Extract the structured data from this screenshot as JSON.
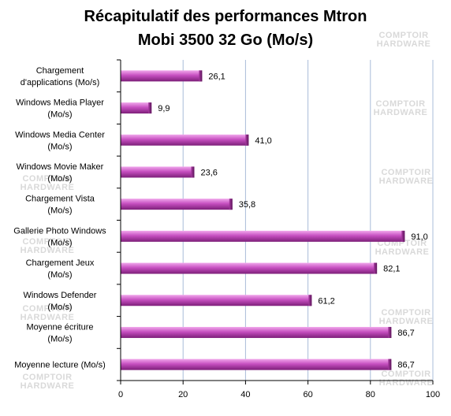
{
  "chart_data": {
    "type": "bar",
    "orientation": "horizontal",
    "title_lines": [
      "Récapitulatif des performances Mtron",
      "Mobi 3500 32 Go (Mo/s)"
    ],
    "categories": [
      [
        "Chargement",
        "d'applications (Mo/s)"
      ],
      [
        "Windows Media Player",
        "(Mo/s)"
      ],
      [
        "Windows Media Center",
        "(Mo/s)"
      ],
      [
        "Windows Movie Maker",
        "(Mo/s)"
      ],
      [
        "Chargement Vista",
        "(Mo/s)"
      ],
      [
        "Gallerie Photo Windows",
        "(Mo/s)"
      ],
      [
        "Chargement Jeux",
        "(Mo/s)"
      ],
      [
        "Windows Defender",
        "(Mo/s)"
      ],
      [
        "Moyenne écriture",
        "(Mo/s)"
      ],
      [
        "Moyenne lecture (Mo/s)"
      ]
    ],
    "values": [
      26.1,
      9.9,
      41.0,
      23.6,
      35.8,
      91.0,
      82.1,
      61.2,
      86.7,
      86.7
    ],
    "value_labels": [
      "26,1",
      "9,9",
      "41,0",
      "23,6",
      "35,8",
      "91,0",
      "82,1",
      "61,2",
      "86,7",
      "86,7"
    ],
    "xlim": [
      0,
      100
    ],
    "xticks": [
      0,
      20,
      40,
      60,
      80,
      100
    ],
    "grid": true,
    "bar_color": "#c64fc0",
    "watermark": [
      "COMPTOIR",
      "HARDWARE"
    ]
  }
}
